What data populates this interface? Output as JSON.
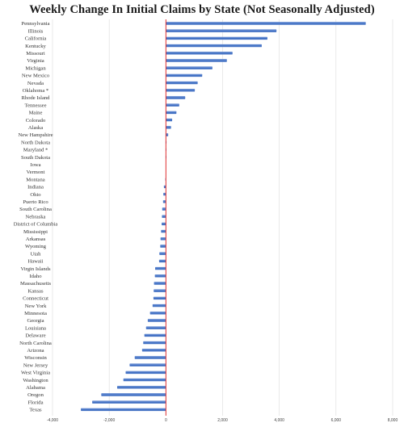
{
  "chart_data": {
    "type": "bar",
    "orientation": "horizontal",
    "title": "Weekly Change In Initial Claims by State (Not Seasonally Adjusted)",
    "xlabel": "",
    "ylabel": "",
    "xlim": [
      -4000,
      8000
    ],
    "xticks": [
      -4000,
      -2000,
      0,
      2000,
      4000,
      6000,
      8000
    ],
    "xtick_labels": [
      "-4,000",
      "-2,000",
      "0",
      "2,000",
      "4,000",
      "6,000",
      "8,000"
    ],
    "grid": true,
    "bar_color": "#4472c4",
    "zero_line_color": "#e03030",
    "categories": [
      "Pennsylvania",
      "Illinois",
      "California",
      "Kentucky",
      "Missouri",
      "Virginia",
      "Michigan",
      "New Mexico",
      "Nevada",
      "Oklahoma *",
      "Rhode Island",
      "Tennessee",
      "Maine",
      "Colorado",
      "Alaska",
      "New Hampshire",
      "North Dakota",
      "Maryland *",
      "South Dakota",
      "Iowa",
      "Vermont",
      "Montana",
      "Indiana",
      "Ohio",
      "Puerto Rico",
      "South Carolina",
      "Nebraska",
      "District of Columbia",
      "Mississippi",
      "Arkansas",
      "Wyoming",
      "Utah",
      "Hawaii",
      "Virgin Islands",
      "Idaho",
      "Massachusetts",
      "Kansas",
      "Connecticut",
      "New York",
      "Minnesota",
      "Georgia",
      "Louisiana",
      "Delaware",
      "North Carolina",
      "Arizona",
      "Wisconsin",
      "New Jersey",
      "West Virginia",
      "Washington",
      "Alabama",
      "Oregon",
      "Florida",
      "Texas"
    ],
    "values": [
      7050,
      3900,
      3580,
      3380,
      2350,
      2150,
      1640,
      1280,
      1120,
      1020,
      680,
      470,
      370,
      220,
      180,
      80,
      20,
      10,
      5,
      0,
      0,
      -20,
      -70,
      -90,
      -100,
      -130,
      -140,
      -150,
      -170,
      -190,
      -200,
      -230,
      -240,
      -380,
      -390,
      -420,
      -430,
      -440,
      -470,
      -560,
      -640,
      -700,
      -760,
      -800,
      -840,
      -1100,
      -1280,
      -1420,
      -1500,
      -1720,
      -2280,
      -2600,
      -3000
    ]
  }
}
